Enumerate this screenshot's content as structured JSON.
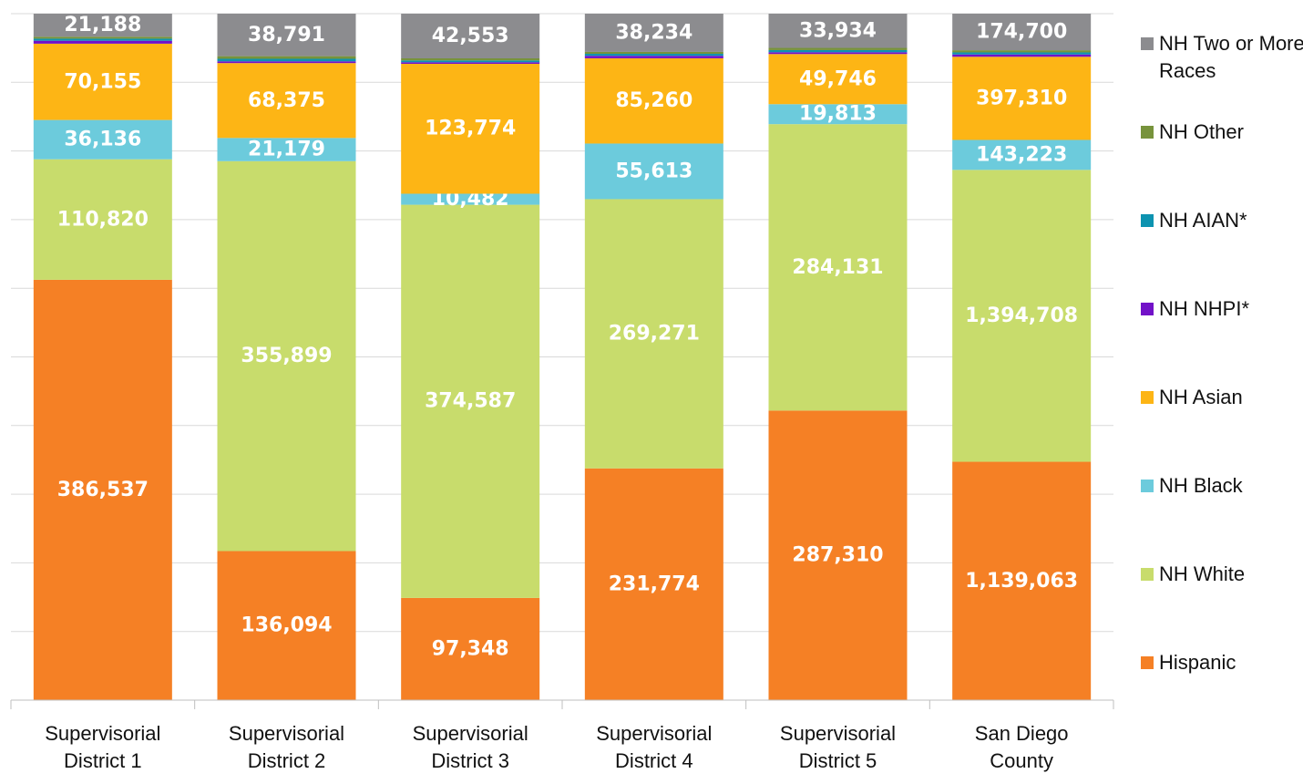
{
  "chart_data": {
    "type": "stacked_percent_bar",
    "categories": [
      "Supervisorial District 1",
      "Supervisorial District 2",
      "Supervisorial District 3",
      "Supervisorial District 4",
      "Supervisorial District 5",
      "San Diego County"
    ],
    "series": [
      {
        "name": "Hispanic",
        "color": "#f58025",
        "values": [
          386537,
          136094,
          97348,
          231774,
          287310,
          1139063
        ],
        "value_labels": [
          "386,537",
          "136,094",
          "97,348",
          "231,774",
          "287,310",
          "1,139,063"
        ]
      },
      {
        "name": "NH White",
        "color": "#c8dc6c",
        "values": [
          110820,
          355899,
          374587,
          269271,
          284131,
          1394708
        ],
        "value_labels": [
          "110,820",
          "355,899",
          "374,587",
          "269,271",
          "284,131",
          "1,394,708"
        ]
      },
      {
        "name": "NH Black",
        "color": "#6ccbdc",
        "values": [
          36136,
          21179,
          10482,
          55613,
          19813,
          143223
        ],
        "value_labels": [
          "36,136",
          "21,179",
          "10,482",
          "55,613",
          "19,813",
          "143,223"
        ]
      },
      {
        "name": "NH Asian",
        "color": "#fdb515",
        "values": [
          70155,
          68375,
          123774,
          85260,
          49746,
          397310
        ],
        "value_labels": [
          "70,155",
          "68,375",
          "123,774",
          "85,260",
          "49,746",
          "397,310"
        ]
      },
      {
        "name": "NH NHPI*",
        "color": "#7212c8",
        "values": [
          2700,
          1600,
          1500,
          2500,
          1800,
          11000
        ]
      },
      {
        "name": "NH AIAN*",
        "color": "#0d93b0",
        "values": [
          1900,
          2300,
          1700,
          2000,
          2100,
          10000
        ]
      },
      {
        "name": "NH Other",
        "color": "#77933c",
        "values": [
          1800,
          2400,
          2000,
          1900,
          2200,
          10300
        ]
      },
      {
        "name": "NH Two or More Races",
        "color": "#8c8c8f",
        "values": [
          21188,
          38791,
          42553,
          38234,
          33934,
          174700
        ],
        "value_labels": [
          "21,188",
          "38,791",
          "42,553",
          "38,234",
          "33,934",
          "174,700"
        ]
      }
    ],
    "ylim": [
      0,
      100
    ],
    "yticks": [
      0,
      10,
      20,
      30,
      40,
      50,
      60,
      70,
      80,
      90,
      100
    ],
    "grid": true,
    "legend": "right"
  }
}
